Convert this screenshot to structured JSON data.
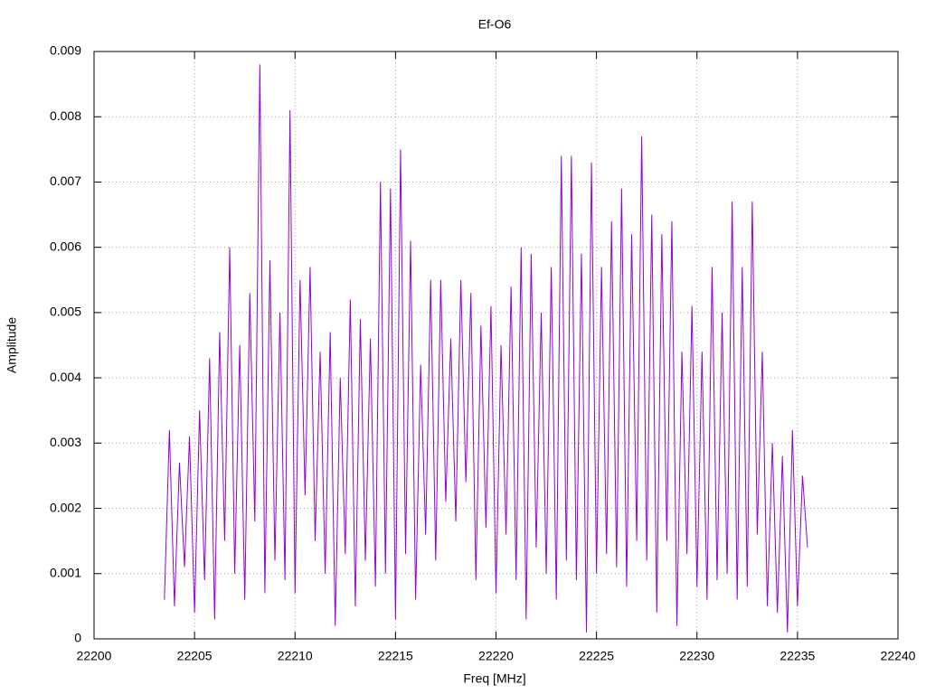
{
  "chart_data": {
    "type": "line",
    "title": "Ef-O6",
    "x_label": "Freq [MHz]",
    "y_label": "Amplitude",
    "x": [
      22203.5,
      22203.75,
      22204,
      22204.25,
      22204.5,
      22204.75,
      22205,
      22205.25,
      22205.5,
      22205.75,
      22206,
      22206.25,
      22206.5,
      22206.75,
      22207,
      22207.25,
      22207.5,
      22207.75,
      22208,
      22208.25,
      22208.5,
      22208.75,
      22209,
      22209.25,
      22209.5,
      22209.75,
      22210,
      22210.25,
      22210.5,
      22210.75,
      22211,
      22211.25,
      22211.5,
      22211.75,
      22212,
      22212.25,
      22212.5,
      22212.75,
      22213,
      22213.25,
      22213.5,
      22213.75,
      22214,
      22214.25,
      22214.5,
      22214.75,
      22215,
      22215.25,
      22215.5,
      22215.75,
      22216,
      22216.25,
      22216.5,
      22216.75,
      22217,
      22217.25,
      22217.5,
      22217.75,
      22218,
      22218.25,
      22218.5,
      22218.75,
      22219,
      22219.25,
      22219.5,
      22219.75,
      22220,
      22220.25,
      22220.5,
      22220.75,
      22221,
      22221.25,
      22221.5,
      22221.75,
      22222,
      22222.25,
      22222.5,
      22222.75,
      22223,
      22223.25,
      22223.5,
      22223.75,
      22224,
      22224.25,
      22224.5,
      22224.75,
      22225,
      22225.25,
      22225.5,
      22225.75,
      22226,
      22226.25,
      22226.5,
      22226.75,
      22227,
      22227.25,
      22227.5,
      22227.75,
      22228,
      22228.25,
      22228.5,
      22228.75,
      22229,
      22229.25,
      22229.5,
      22229.75,
      22230,
      22230.25,
      22230.5,
      22230.75,
      22231,
      22231.25,
      22231.5,
      22231.75,
      22232,
      22232.25,
      22232.5,
      22232.75,
      22233,
      22233.25,
      22233.5,
      22233.75,
      22234,
      22234.25,
      22234.5,
      22234.75,
      22235,
      22235.25,
      22235.5
    ],
    "series": [
      {
        "color": "#9400d3",
        "values": [
          0.0006,
          0.0032,
          0.0005,
          0.0027,
          0.0011,
          0.0031,
          0.0004,
          0.0035,
          0.0009,
          0.0043,
          0.0003,
          0.0047,
          0.0015,
          0.006,
          0.001,
          0.0045,
          0.0006,
          0.0053,
          0.0018,
          0.0088,
          0.0007,
          0.0058,
          0.0012,
          0.005,
          0.0009,
          0.0081,
          0.0007,
          0.0055,
          0.0022,
          0.0057,
          0.0015,
          0.0044,
          0.001,
          0.0047,
          0.0002,
          0.004,
          0.0013,
          0.0052,
          0.0005,
          0.0049,
          0.0012,
          0.0046,
          0.0008,
          0.007,
          0.001,
          0.0069,
          0.0003,
          0.0075,
          0.0013,
          0.0061,
          0.0006,
          0.0042,
          0.0016,
          0.0055,
          0.0012,
          0.0055,
          0.0021,
          0.0046,
          0.0018,
          0.0055,
          0.0024,
          0.0053,
          0.0009,
          0.0048,
          0.0017,
          0.0051,
          0.0007,
          0.0045,
          0.0016,
          0.0054,
          0.0009,
          0.006,
          0.0003,
          0.0059,
          0.0014,
          0.005,
          0.001,
          0.0057,
          0.0006,
          0.0074,
          0.0012,
          0.0074,
          0.0009,
          0.0059,
          0.0001,
          0.0073,
          0.001,
          0.0057,
          0.0013,
          0.0064,
          0.0011,
          0.0069,
          0.0008,
          0.0062,
          0.0015,
          0.0077,
          0.0012,
          0.0065,
          0.0004,
          0.0062,
          0.0015,
          0.0064,
          0.0002,
          0.0044,
          0.0013,
          0.0051,
          0.0008,
          0.0044,
          0.0006,
          0.0057,
          0.0009,
          0.005,
          0.001,
          0.0067,
          0.0006,
          0.0057,
          0.0008,
          0.0067,
          0.0016,
          0.0044,
          0.0005,
          0.003,
          0.0004,
          0.0028,
          0.0001,
          0.0032,
          0.0005,
          0.0025,
          0.0014
        ]
      }
    ],
    "xlim": [
      22200,
      22240
    ],
    "xticks": [
      22200,
      22205,
      22210,
      22215,
      22220,
      22225,
      22230,
      22235,
      22240
    ],
    "ylim": [
      0,
      0.009
    ],
    "yticks": [
      0,
      0.001,
      0.002,
      0.003,
      0.004,
      0.005,
      0.006,
      0.007,
      0.008,
      0.009
    ],
    "grid": true
  }
}
